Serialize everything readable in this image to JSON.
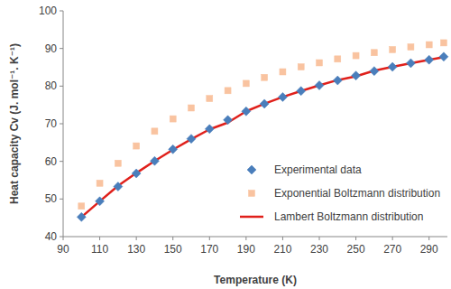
{
  "chart_data": {
    "type": "scatter",
    "x_label": "Temperature (K)",
    "y_label": "Heat capacity Cv (J. mol⁻¹. K⁻¹)",
    "x": [
      100,
      110,
      120,
      130,
      140,
      150,
      160,
      170,
      180,
      190,
      200,
      210,
      220,
      230,
      240,
      250,
      260,
      270,
      280,
      290,
      298
    ],
    "series": [
      {
        "name": "Experimental data",
        "type": "scatter",
        "marker": "diamond",
        "color": "#4a7ebb",
        "values": [
          45.2,
          49.4,
          53.3,
          56.8,
          60.1,
          63.2,
          66.0,
          68.6,
          71.0,
          73.3,
          75.3,
          77.1,
          78.7,
          80.2,
          81.5,
          82.8,
          84.0,
          85.1,
          86.1,
          87.0,
          87.8
        ]
      },
      {
        "name": "Exponential Boltzmann distribution",
        "type": "scatter",
        "marker": "square",
        "color": "#f9c3a0",
        "values": [
          48.1,
          54.2,
          59.5,
          64.1,
          68.0,
          71.3,
          74.2,
          76.7,
          78.8,
          80.7,
          82.3,
          83.8,
          85.1,
          86.2,
          87.2,
          88.1,
          88.9,
          89.7,
          90.4,
          91.0,
          91.5
        ]
      },
      {
        "name": "Lambert Boltzmann distribution",
        "type": "line",
        "line_style": "solid",
        "color": "#e0201b",
        "values": [
          45.2,
          49.4,
          53.5,
          56.9,
          60.1,
          63.1,
          65.9,
          68.5,
          70.3,
          73.3,
          75.3,
          77.1,
          78.7,
          80.2,
          81.6,
          82.6,
          84.1,
          85.1,
          86.1,
          87.0,
          87.7
        ]
      }
    ],
    "xlim": [
      90,
      300
    ],
    "xticks": [
      90,
      110,
      130,
      150,
      170,
      190,
      210,
      230,
      250,
      270,
      290
    ],
    "ylim": [
      40,
      100
    ],
    "yticks": [
      40,
      50,
      60,
      70,
      80,
      90,
      100
    ],
    "grid": false,
    "legend": "lower right"
  }
}
